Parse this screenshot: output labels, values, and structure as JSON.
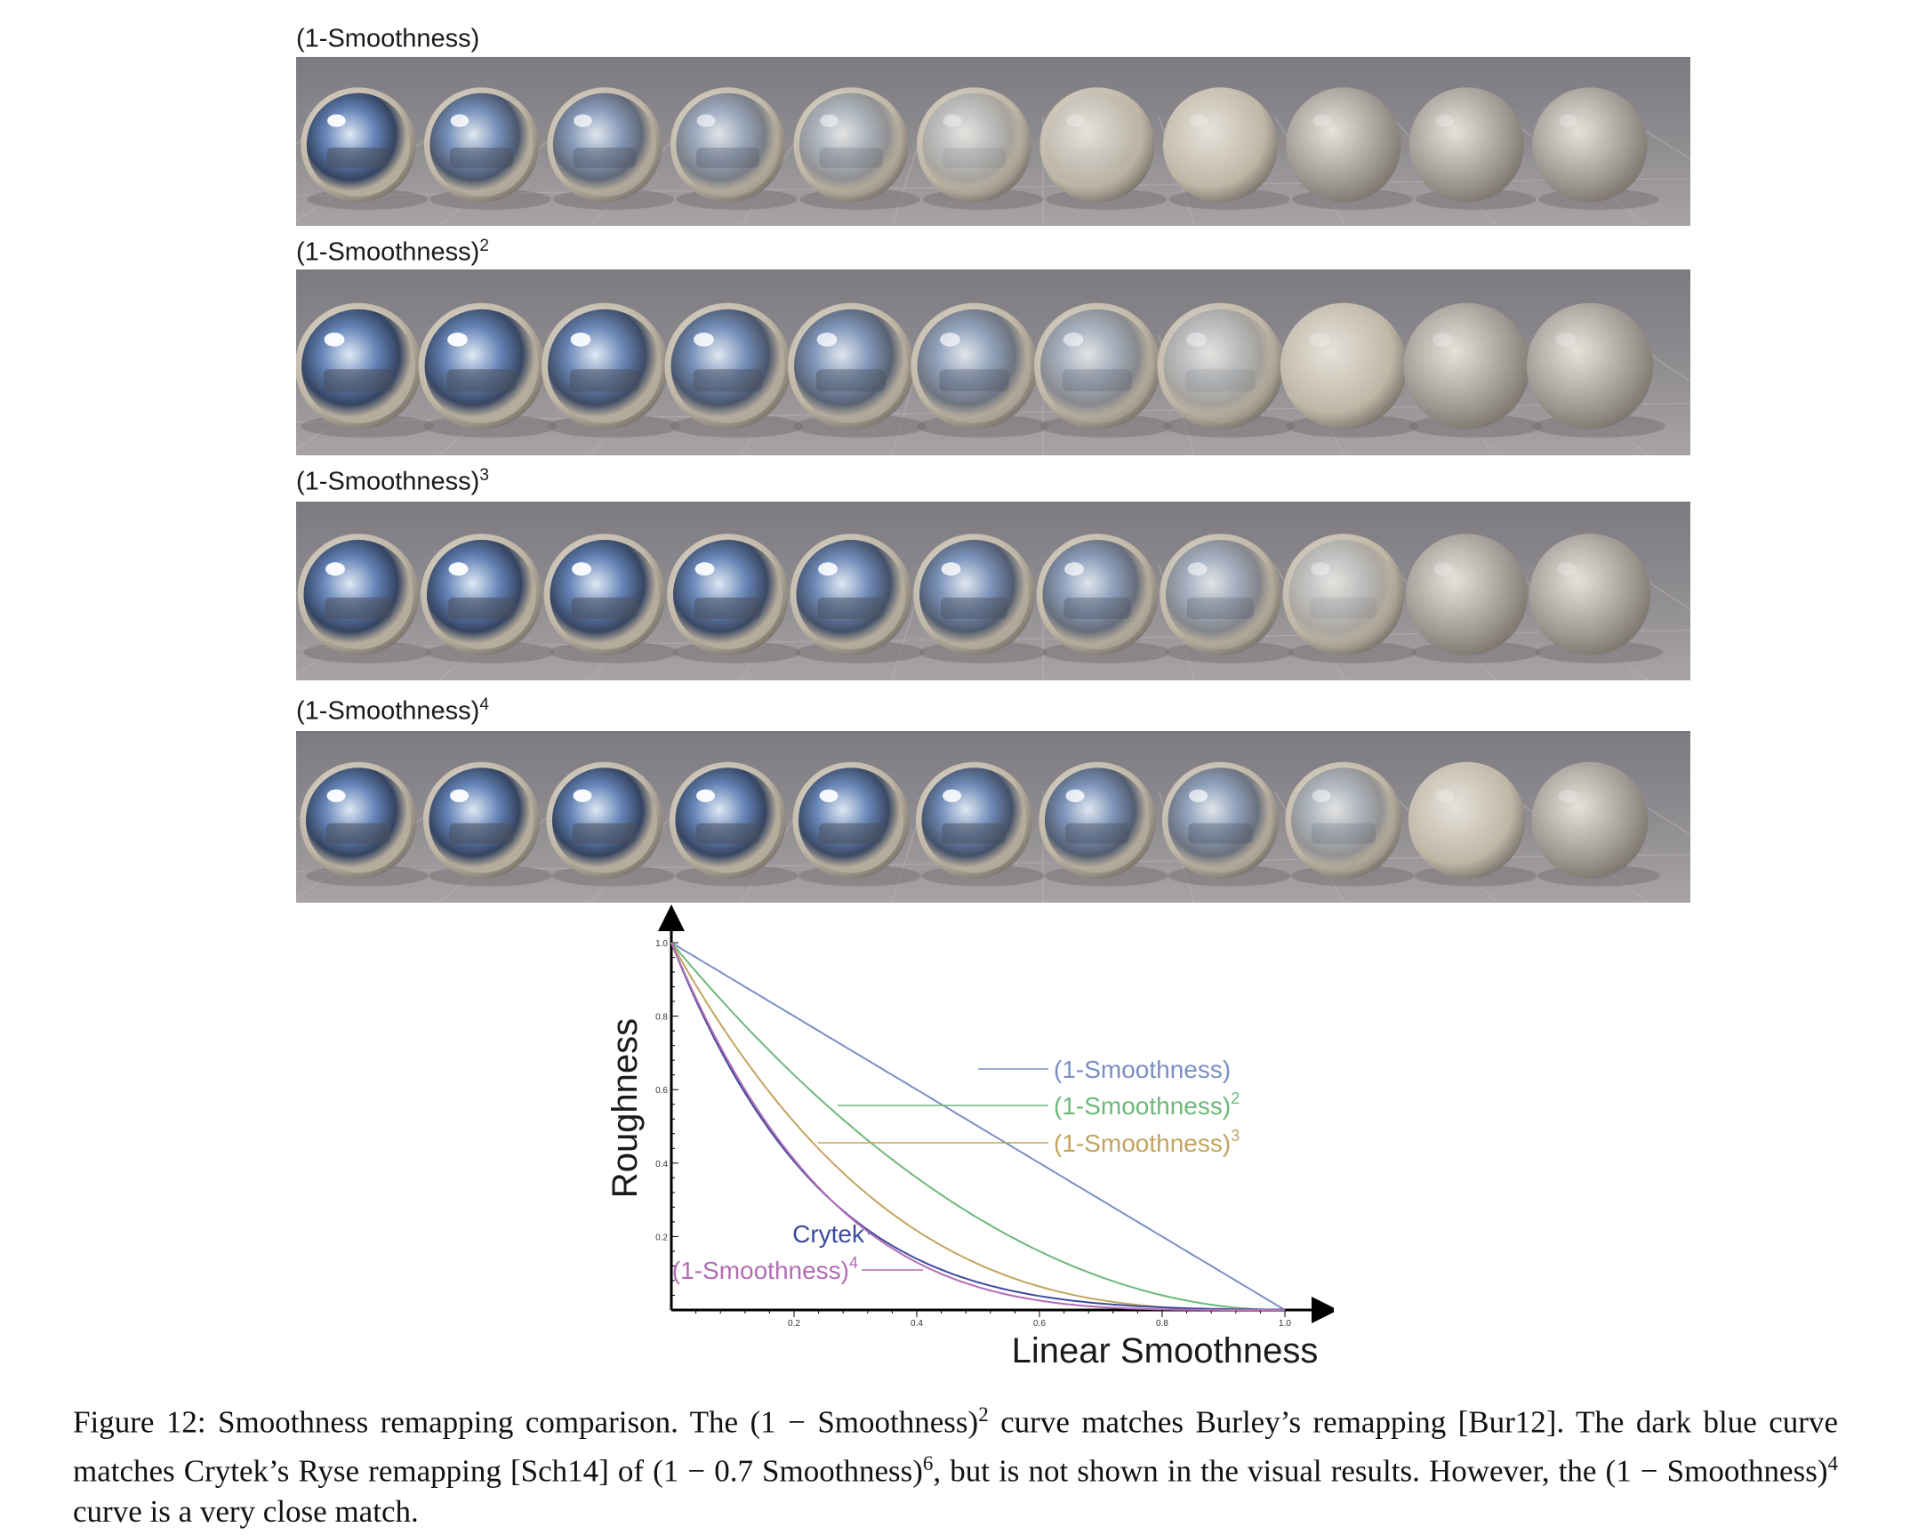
{
  "rows": [
    {
      "label": "(1-Smoothness)",
      "exponent": ""
    },
    {
      "label": "(1-Smoothness)",
      "exponent": "2"
    },
    {
      "label": "(1-Smoothness)",
      "exponent": "3"
    },
    {
      "label": "(1-Smoothness)",
      "exponent": "4"
    }
  ],
  "colors": {
    "linear": "#7a8fc4",
    "squared": "#6db87a",
    "cubed": "#c2a45e",
    "crytek": "#3d4ba0",
    "fourth": "#b36cb3"
  },
  "chart_data": {
    "type": "line",
    "xlabel": "Linear Smoothness",
    "ylabel": "Roughness",
    "xlim": [
      0,
      1
    ],
    "ylim": [
      0,
      1
    ],
    "xticks": [
      "0.2",
      "0.4",
      "0.6",
      "0.8",
      "1.0"
    ],
    "yticks": [
      "0.2",
      "0.4",
      "0.6",
      "0.8",
      "1.0"
    ],
    "x": [
      0,
      0.1,
      0.2,
      0.3,
      0.4,
      0.5,
      0.6,
      0.7,
      0.8,
      0.9,
      1.0
    ],
    "series": [
      {
        "name": "(1-Smoothness)",
        "exponent": "",
        "values": [
          1,
          0.9,
          0.8,
          0.7,
          0.6,
          0.5,
          0.4,
          0.3,
          0.2,
          0.1,
          0
        ]
      },
      {
        "name": "(1-Smoothness)",
        "exponent": "2",
        "values": [
          1,
          0.81,
          0.64,
          0.49,
          0.36,
          0.25,
          0.16,
          0.09,
          0.04,
          0.01,
          0
        ]
      },
      {
        "name": "(1-Smoothness)",
        "exponent": "3",
        "values": [
          1,
          0.729,
          0.512,
          0.343,
          0.216,
          0.125,
          0.064,
          0.027,
          0.008,
          0.001,
          0
        ]
      },
      {
        "name": "Crytek",
        "exponent": "",
        "values": [
          1,
          0.667,
          0.436,
          0.279,
          0.175,
          0.107,
          0.064,
          0.037,
          0.021,
          0.011,
          0.006
        ]
      },
      {
        "name": "(1-Smoothness)",
        "exponent": "4",
        "values": [
          1,
          0.656,
          0.41,
          0.24,
          0.13,
          0.063,
          0.026,
          0.008,
          0.002,
          0.0001,
          0
        ]
      }
    ]
  },
  "caption": {
    "part1": "Figure 12: Smoothness remapping comparison. The (1 − Smoothness)",
    "sup1": "2",
    "part2": " curve matches Burley’s remapping [Bur12]. The dark blue curve matches Crytek’s Ryse remapping [Sch14] of (1 − 0.7 Smoothness)",
    "sup2": "6",
    "part3": ", but is not shown in the visual results. However, the (1 − Smoothness)",
    "sup3": "4",
    "part4": " curve is a very close match."
  }
}
